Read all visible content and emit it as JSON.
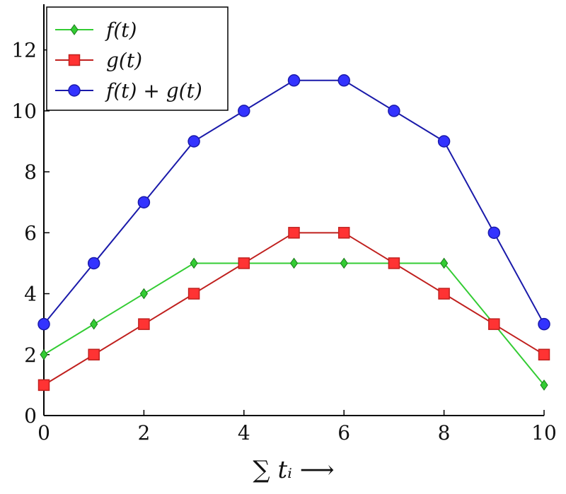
{
  "chart_data": {
    "type": "line",
    "x": [
      0,
      1,
      2,
      3,
      4,
      5,
      6,
      7,
      8,
      9,
      10
    ],
    "series": [
      {
        "name": "f(t)",
        "color": "#33cc33",
        "marker": "diamond",
        "values": [
          2,
          3,
          4,
          5,
          5,
          5,
          5,
          5,
          5,
          3,
          1
        ]
      },
      {
        "name": "g(t)",
        "color": "#c0201e",
        "fill": "#ff3333",
        "marker": "square",
        "values": [
          1,
          2,
          3,
          4,
          5,
          6,
          6,
          5,
          4,
          3,
          2
        ]
      },
      {
        "name": "f(t) + g(t)",
        "color": "#1a1aaa",
        "fill": "#3333ff",
        "marker": "circle",
        "values": [
          3,
          5,
          7,
          9,
          10,
          11,
          11,
          10,
          9,
          6,
          3
        ]
      }
    ],
    "x_ticks": [
      "0",
      "2",
      "4",
      "6",
      "8",
      "10"
    ],
    "y_ticks": [
      "0",
      "2",
      "4",
      "6",
      "8",
      "10",
      "12"
    ],
    "xlabel": "∑ tᵢ  ⟶",
    "ylabel": "",
    "xlim": [
      0,
      10
    ],
    "ylim": [
      0,
      13.5
    ],
    "grid": false,
    "legend_position": "top-left"
  }
}
